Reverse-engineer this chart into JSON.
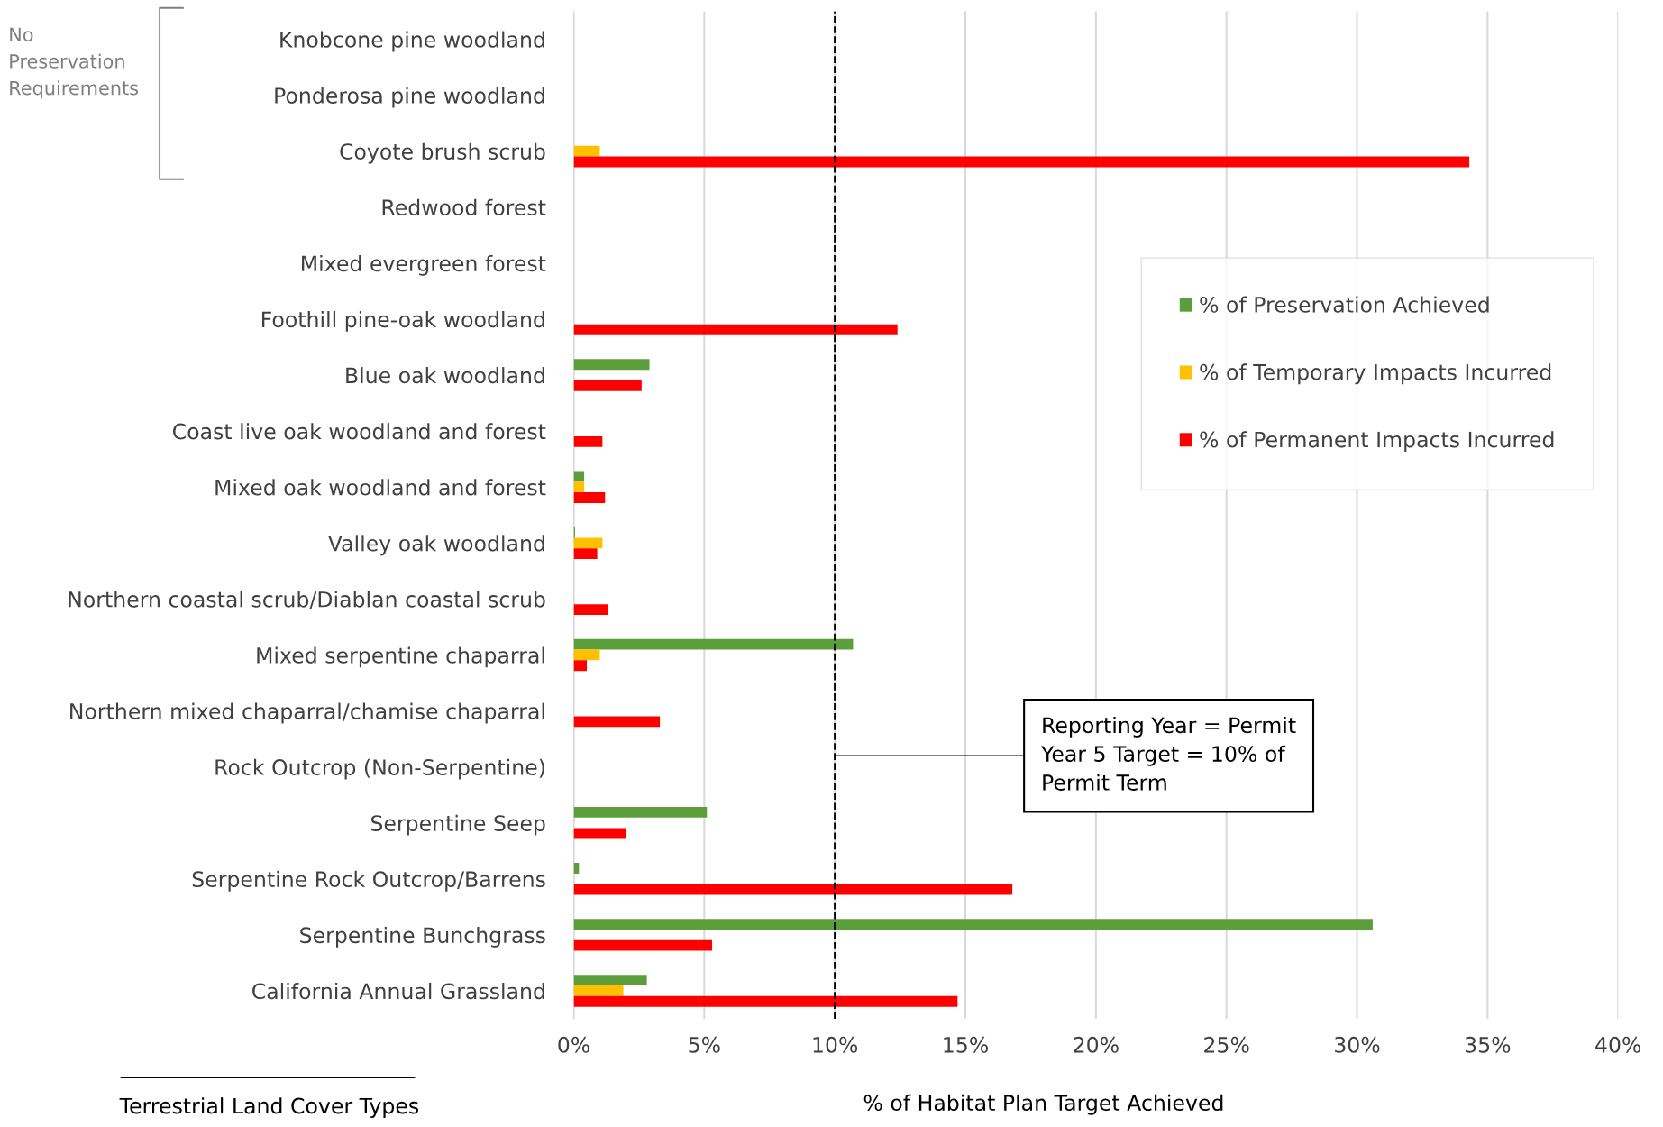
{
  "chart_data": {
    "type": "bar",
    "orientation": "horizontal",
    "xlabel": "% of Habitat Plan Target Achieved",
    "ylabel": "Terrestrial Land Cover Types",
    "categories": [
      "Knobcone pine woodland",
      "Ponderosa pine woodland",
      "Coyote brush scrub",
      "Redwood forest",
      "Mixed evergreen forest",
      "Foothill pine-oak woodland",
      "Blue oak woodland",
      "Coast live oak woodland and forest",
      "Mixed oak woodland and forest",
      "Valley oak woodland",
      "Northern coastal scrub/Diablan coastal scrub",
      "Mixed serpentine chaparral",
      "Northern mixed chaparral/chamise chaparral",
      "Rock Outcrop (Non-Serpentine)",
      "Serpentine Seep",
      "Serpentine Rock Outcrop/Barrens",
      "Serpentine Bunchgrass",
      "California Annual Grassland"
    ],
    "series": [
      {
        "name": "% of Preservation Achieved",
        "color": "#5b9e3b",
        "values": [
          null,
          null,
          null,
          null,
          null,
          null,
          2.9,
          null,
          0.4,
          0.05,
          null,
          10.7,
          null,
          null,
          5.1,
          0.2,
          30.6,
          2.8
        ]
      },
      {
        "name": "% of Temporary Impacts Incurred",
        "color": "#ffc000",
        "values": [
          null,
          null,
          1.0,
          null,
          null,
          null,
          null,
          null,
          0.4,
          1.1,
          null,
          1.0,
          null,
          null,
          null,
          null,
          null,
          1.9
        ]
      },
      {
        "name": "% of Permanent Impacts Incurred",
        "color": "#ff0000",
        "values": [
          null,
          null,
          34.3,
          null,
          null,
          12.4,
          2.6,
          1.1,
          1.2,
          0.9,
          1.3,
          0.5,
          3.3,
          null,
          2.0,
          16.8,
          5.3,
          14.7
        ]
      }
    ],
    "xlim": [
      0,
      40
    ],
    "xticks": [
      {
        "value": 0,
        "label": "0%"
      },
      {
        "value": 5,
        "label": "5%"
      },
      {
        "value": 10,
        "label": "10%"
      },
      {
        "value": 15,
        "label": "15%"
      },
      {
        "value": 20,
        "label": "20%"
      },
      {
        "value": 25,
        "label": "25%"
      },
      {
        "value": 30,
        "label": "30%"
      },
      {
        "value": 35,
        "label": "35%"
      },
      {
        "value": 40,
        "label": "40%"
      }
    ],
    "grid": "x",
    "legend": "top right",
    "ref_lines": [
      {
        "axis": "x",
        "value": 10,
        "label": "Reporting Year = Permit\nYear 5 Target = 10% of\nPermit Term",
        "color": "#000000",
        "line_style": "dashed"
      }
    ],
    "annotations": [
      "No\nPreservation\nRequirements"
    ]
  }
}
